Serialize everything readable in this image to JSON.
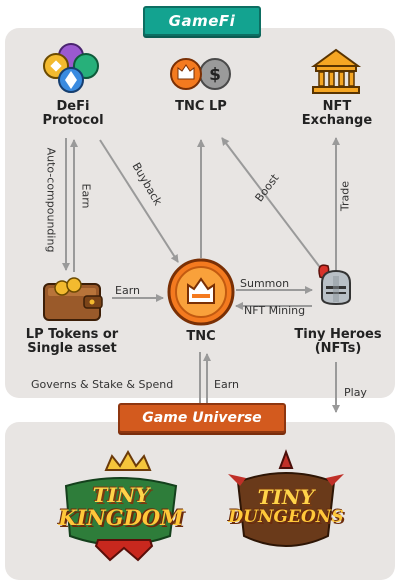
{
  "banners": {
    "top": "GameFi",
    "bottom": "Game Universe"
  },
  "nodes": {
    "defi": "DeFi\nProtocol",
    "tnc_lp": "TNC LP",
    "nft_exchange": "NFT\nExchange",
    "lp_tokens": "LP Tokens or\nSingle asset",
    "tnc": "TNC",
    "tiny_heroes": "Tiny Heroes\n(NFTs)"
  },
  "edges": {
    "auto_compounding": "Auto-compounding",
    "earn_left": "Earn",
    "buyback": "Buyback",
    "boost": "Boost",
    "trade": "Trade",
    "earn_mid": "Earn",
    "summon": "Summon",
    "nft_mining": "NFT Mining",
    "governs": "Governs & Stake & Spend",
    "earn_bottom": "Earn",
    "play": "Play"
  },
  "games": {
    "tiny_kingdom": [
      "TINY",
      "KINGDOM"
    ],
    "tiny_dungeons": [
      "TINY",
      "DUNGEONS"
    ]
  },
  "icons": {
    "defi": "defi-coins-icon",
    "tnc_lp": "tnc-lp-icon",
    "nft_exchange": "bank-icon",
    "lp_tokens": "wallet-icon",
    "tnc": "tnc-token-icon",
    "tiny_heroes": "knight-helmet-icon"
  },
  "colors": {
    "teal": "#13a390",
    "orange": "#d35a1e",
    "panel": "#e8e5e3",
    "arrow": "#9a9a9a"
  }
}
